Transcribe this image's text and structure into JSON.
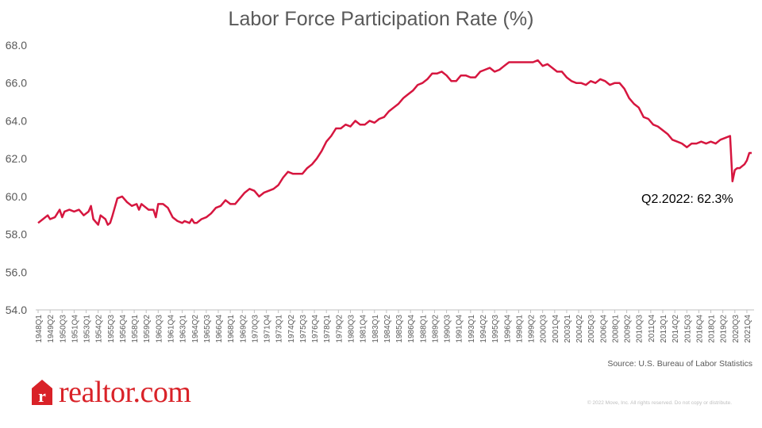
{
  "colors": {
    "line": "#d6163f",
    "axis": "#bfbfbf",
    "text": "#595959",
    "brand": "#d92228"
  },
  "logo": {
    "text": "realtor.com",
    "mark_icon": "realtor-r-house-icon"
  },
  "source": "Source: U.S. Bureau of Labor Statistics",
  "copyright": "© 2022 Move, Inc. All rights reserved. Do not copy or distribute.",
  "chart_data": {
    "type": "line",
    "title": "Labor Force Participation Rate (%)",
    "xlabel": "",
    "ylabel": "",
    "ylim": [
      54.0,
      68.0
    ],
    "yticks": [
      "54.0",
      "56.0",
      "58.0",
      "60.0",
      "62.0",
      "64.0",
      "66.0",
      "68.0"
    ],
    "x_start": "1948Q1",
    "x_end": "2022Q2",
    "xtick_labels": [
      "1948Q1",
      "1949Q2",
      "1950Q3",
      "1951Q4",
      "1953Q1",
      "1954Q2",
      "1955Q3",
      "1956Q4",
      "1958Q1",
      "1959Q2",
      "1960Q3",
      "1961Q4",
      "1963Q1",
      "1964Q2",
      "1965Q3",
      "1966Q4",
      "1968Q1",
      "1969Q2",
      "1970Q3",
      "1971Q4",
      "1973Q1",
      "1974Q2",
      "1975Q3",
      "1976Q4",
      "1978Q1",
      "1979Q2",
      "1980Q3",
      "1981Q4",
      "1983Q1",
      "1984Q2",
      "1985Q3",
      "1986Q4",
      "1988Q1",
      "1989Q2",
      "1990Q3",
      "1991Q4",
      "1993Q1",
      "1994Q2",
      "1995Q3",
      "1996Q4",
      "1998Q1",
      "1999Q2",
      "2000Q3",
      "2001Q4",
      "2003Q1",
      "2004Q2",
      "2005Q3",
      "2006Q4",
      "2008Q1",
      "2009Q2",
      "2010Q3",
      "2011Q4",
      "2013Q1",
      "2014Q2",
      "2015Q3",
      "2016Q4",
      "2018Q1",
      "2019Q2",
      "2020Q3",
      "2021Q4"
    ],
    "series": [
      {
        "points": [
          [
            "1948Q1",
            58.6
          ],
          [
            "1948Q3",
            58.8
          ],
          [
            "1949Q1",
            59.0
          ],
          [
            "1949Q2",
            58.8
          ],
          [
            "1949Q4",
            58.9
          ],
          [
            "1950Q2",
            59.3
          ],
          [
            "1950Q3",
            58.9
          ],
          [
            "1950Q4",
            59.2
          ],
          [
            "1951Q2",
            59.3
          ],
          [
            "1951Q4",
            59.2
          ],
          [
            "1952Q2",
            59.3
          ],
          [
            "1952Q4",
            59.0
          ],
          [
            "1953Q2",
            59.2
          ],
          [
            "1953Q3",
            59.5
          ],
          [
            "1953Q4",
            58.8
          ],
          [
            "1954Q2",
            58.5
          ],
          [
            "1954Q3",
            59.0
          ],
          [
            "1955Q1",
            58.8
          ],
          [
            "1955Q2",
            58.5
          ],
          [
            "1955Q3",
            58.6
          ],
          [
            "1955Q4",
            59.0
          ],
          [
            "1956Q2",
            59.9
          ],
          [
            "1956Q4",
            60.0
          ],
          [
            "1957Q2",
            59.7
          ],
          [
            "1957Q4",
            59.5
          ],
          [
            "1958Q2",
            59.6
          ],
          [
            "1958Q3",
            59.3
          ],
          [
            "1958Q4",
            59.6
          ],
          [
            "1959Q1",
            59.5
          ],
          [
            "1959Q3",
            59.3
          ],
          [
            "1960Q1",
            59.3
          ],
          [
            "1960Q2",
            58.9
          ],
          [
            "1960Q3",
            59.6
          ],
          [
            "1961Q1",
            59.6
          ],
          [
            "1961Q3",
            59.4
          ],
          [
            "1962Q1",
            58.9
          ],
          [
            "1962Q3",
            58.7
          ],
          [
            "1963Q1",
            58.6
          ],
          [
            "1963Q2",
            58.7
          ],
          [
            "1963Q4",
            58.6
          ],
          [
            "1964Q1",
            58.8
          ],
          [
            "1964Q2",
            58.6
          ],
          [
            "1964Q3",
            58.6
          ],
          [
            "1965Q1",
            58.8
          ],
          [
            "1965Q3",
            58.9
          ],
          [
            "1966Q1",
            59.1
          ],
          [
            "1966Q3",
            59.4
          ],
          [
            "1967Q1",
            59.5
          ],
          [
            "1967Q3",
            59.8
          ],
          [
            "1968Q1",
            59.6
          ],
          [
            "1968Q3",
            59.6
          ],
          [
            "1969Q1",
            59.9
          ],
          [
            "1969Q3",
            60.2
          ],
          [
            "1970Q1",
            60.4
          ],
          [
            "1970Q3",
            60.3
          ],
          [
            "1971Q1",
            60.0
          ],
          [
            "1971Q3",
            60.2
          ],
          [
            "1972Q1",
            60.3
          ],
          [
            "1972Q3",
            60.4
          ],
          [
            "1973Q1",
            60.6
          ],
          [
            "1973Q3",
            61.0
          ],
          [
            "1974Q1",
            61.3
          ],
          [
            "1974Q3",
            61.2
          ],
          [
            "1975Q1",
            61.2
          ],
          [
            "1975Q3",
            61.2
          ],
          [
            "1976Q1",
            61.5
          ],
          [
            "1976Q3",
            61.7
          ],
          [
            "1977Q1",
            62.0
          ],
          [
            "1977Q3",
            62.4
          ],
          [
            "1978Q1",
            62.9
          ],
          [
            "1978Q3",
            63.2
          ],
          [
            "1979Q1",
            63.6
          ],
          [
            "1979Q3",
            63.6
          ],
          [
            "1980Q1",
            63.8
          ],
          [
            "1980Q3",
            63.7
          ],
          [
            "1981Q1",
            64.0
          ],
          [
            "1981Q3",
            63.8
          ],
          [
            "1982Q1",
            63.8
          ],
          [
            "1982Q3",
            64.0
          ],
          [
            "1983Q1",
            63.9
          ],
          [
            "1983Q3",
            64.1
          ],
          [
            "1984Q1",
            64.2
          ],
          [
            "1984Q3",
            64.5
          ],
          [
            "1985Q1",
            64.7
          ],
          [
            "1985Q3",
            64.9
          ],
          [
            "1986Q1",
            65.2
          ],
          [
            "1986Q3",
            65.4
          ],
          [
            "1987Q1",
            65.6
          ],
          [
            "1987Q3",
            65.9
          ],
          [
            "1988Q1",
            66.0
          ],
          [
            "1988Q3",
            66.2
          ],
          [
            "1989Q1",
            66.5
          ],
          [
            "1989Q3",
            66.5
          ],
          [
            "1990Q1",
            66.6
          ],
          [
            "1990Q3",
            66.4
          ],
          [
            "1991Q1",
            66.1
          ],
          [
            "1991Q3",
            66.1
          ],
          [
            "1992Q1",
            66.4
          ],
          [
            "1992Q3",
            66.4
          ],
          [
            "1993Q1",
            66.3
          ],
          [
            "1993Q3",
            66.3
          ],
          [
            "1994Q1",
            66.6
          ],
          [
            "1994Q3",
            66.7
          ],
          [
            "1995Q1",
            66.8
          ],
          [
            "1995Q3",
            66.6
          ],
          [
            "1996Q1",
            66.7
          ],
          [
            "1996Q3",
            66.9
          ],
          [
            "1997Q1",
            67.1
          ],
          [
            "1997Q3",
            67.1
          ],
          [
            "1998Q1",
            67.1
          ],
          [
            "1998Q3",
            67.1
          ],
          [
            "1999Q1",
            67.1
          ],
          [
            "1999Q3",
            67.1
          ],
          [
            "2000Q1",
            67.2
          ],
          [
            "2000Q3",
            66.9
          ],
          [
            "2001Q1",
            67.0
          ],
          [
            "2001Q3",
            66.8
          ],
          [
            "2002Q1",
            66.6
          ],
          [
            "2002Q3",
            66.6
          ],
          [
            "2003Q1",
            66.3
          ],
          [
            "2003Q3",
            66.1
          ],
          [
            "2004Q1",
            66.0
          ],
          [
            "2004Q3",
            66.0
          ],
          [
            "2005Q1",
            65.9
          ],
          [
            "2005Q3",
            66.1
          ],
          [
            "2006Q1",
            66.0
          ],
          [
            "2006Q3",
            66.2
          ],
          [
            "2007Q1",
            66.1
          ],
          [
            "2007Q3",
            65.9
          ],
          [
            "2008Q1",
            66.0
          ],
          [
            "2008Q3",
            66.0
          ],
          [
            "2009Q1",
            65.7
          ],
          [
            "2009Q3",
            65.2
          ],
          [
            "2010Q1",
            64.9
          ],
          [
            "2010Q3",
            64.7
          ],
          [
            "2011Q1",
            64.2
          ],
          [
            "2011Q3",
            64.1
          ],
          [
            "2012Q1",
            63.8
          ],
          [
            "2012Q3",
            63.7
          ],
          [
            "2013Q1",
            63.5
          ],
          [
            "2013Q3",
            63.3
          ],
          [
            "2014Q1",
            63.0
          ],
          [
            "2014Q3",
            62.9
          ],
          [
            "2015Q1",
            62.8
          ],
          [
            "2015Q3",
            62.6
          ],
          [
            "2016Q1",
            62.8
          ],
          [
            "2016Q3",
            62.8
          ],
          [
            "2017Q1",
            62.9
          ],
          [
            "2017Q3",
            62.8
          ],
          [
            "2018Q1",
            62.9
          ],
          [
            "2018Q3",
            62.8
          ],
          [
            "2019Q1",
            63.0
          ],
          [
            "2019Q3",
            63.1
          ],
          [
            "2020Q1",
            63.2
          ],
          [
            "2020Q2",
            60.8
          ],
          [
            "2020Q3",
            61.4
          ],
          [
            "2020Q4",
            61.5
          ],
          [
            "2021Q1",
            61.5
          ],
          [
            "2021Q2",
            61.6
          ],
          [
            "2021Q3",
            61.7
          ],
          [
            "2021Q4",
            61.9
          ],
          [
            "2022Q1",
            62.3
          ],
          [
            "2022Q2",
            62.3
          ]
        ]
      }
    ],
    "annotation": "Q2.2022: 62.3%",
    "grid": false,
    "legend": "none"
  }
}
